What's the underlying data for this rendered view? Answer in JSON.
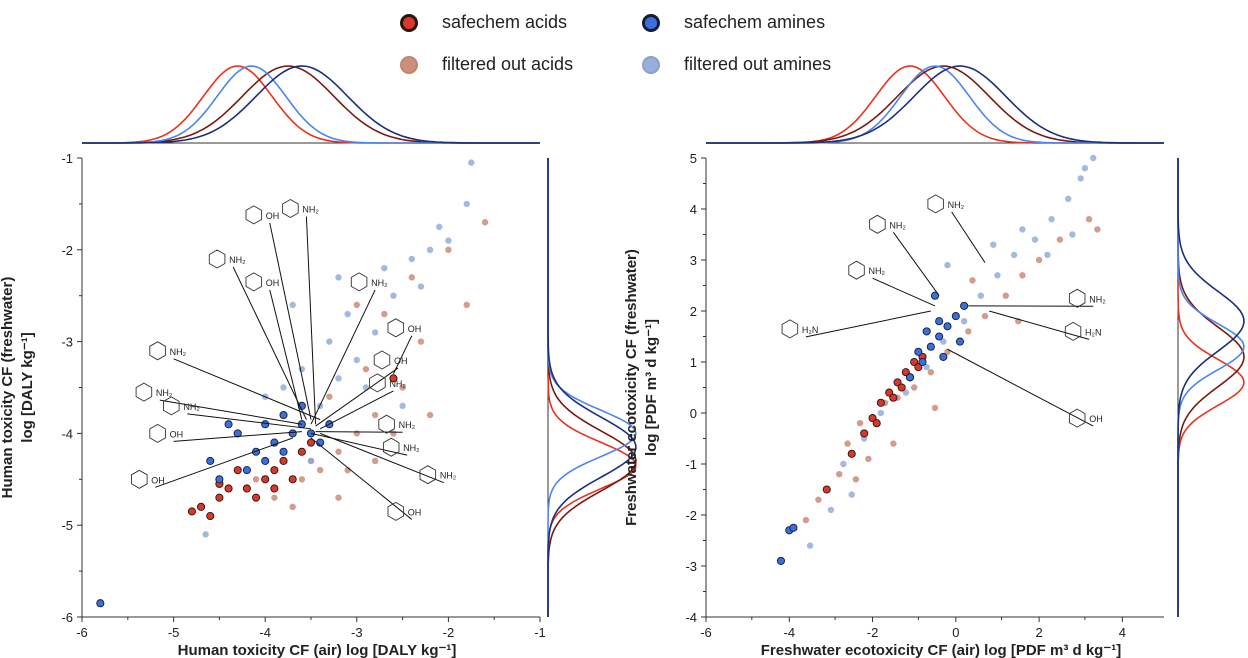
{
  "legend": {
    "items": [
      {
        "label": "safechem acids",
        "color": "#d8382a",
        "edge": "#2a1410",
        "style": "safe"
      },
      {
        "label": "filtered out acids",
        "color": "#c8836e",
        "edge": "#b0705e",
        "style": "filtered"
      },
      {
        "label": "safechem amines",
        "color": "#3b6fdb",
        "edge": "#141c3a",
        "style": "safe"
      },
      {
        "label": "filtered out amines",
        "color": "#8da7d8",
        "edge": "#7f97c6",
        "style": "filtered"
      }
    ]
  },
  "chart_data": [
    {
      "type": "scatter",
      "xlabel": "Human toxicity CF (air) log [DALY kg⁻¹]",
      "ylabel_line1": "Human toxicity CF (freshwater)",
      "ylabel_line2": "log [DALY kg⁻¹]",
      "xlim": [
        -6,
        -1
      ],
      "ylim": [
        -6,
        -1
      ],
      "xticks": [
        "-6",
        "-5",
        "-4",
        "-3",
        "-2",
        "-1"
      ],
      "yticks": [
        "-6",
        "-5",
        "-4",
        "-3",
        "-2",
        "-1"
      ],
      "marginal_x_peaks": {
        "safechem acids": -4.3,
        "filtered out acids": -3.75,
        "safechem amines": -4.15,
        "filtered out amines": -3.6
      },
      "marginal_y_peaks": {
        "safechem acids": -4.35,
        "filtered out acids": -4.3,
        "safechem amines": -4.0,
        "filtered out amines": -4.15
      },
      "series": [
        {
          "name": "safechem acids",
          "points": [
            [
              -4.7,
              -4.8
            ],
            [
              -4.6,
              -4.9
            ],
            [
              -4.5,
              -4.7
            ],
            [
              -4.2,
              -4.6
            ],
            [
              -4.0,
              -4.5
            ],
            [
              -3.9,
              -4.4
            ],
            [
              -4.3,
              -4.4
            ],
            [
              -3.8,
              -4.3
            ],
            [
              -3.6,
              -4.2
            ],
            [
              -3.5,
              -4.1
            ],
            [
              -4.4,
              -4.6
            ],
            [
              -4.1,
              -4.7
            ],
            [
              -3.7,
              -4.5
            ],
            [
              -2.6,
              -3.4
            ],
            [
              -4.8,
              -4.85
            ],
            [
              -3.9,
              -4.6
            ],
            [
              -4.5,
              -4.55
            ]
          ]
        },
        {
          "name": "safechem amines",
          "points": [
            [
              -5.8,
              -5.85
            ],
            [
              -4.6,
              -4.3
            ],
            [
              -4.3,
              -4.0
            ],
            [
              -4.0,
              -3.9
            ],
            [
              -3.8,
              -3.8
            ],
            [
              -3.6,
              -3.9
            ],
            [
              -3.5,
              -4.0
            ],
            [
              -3.4,
              -4.1
            ],
            [
              -3.9,
              -4.1
            ],
            [
              -4.1,
              -4.2
            ],
            [
              -3.7,
              -4.0
            ],
            [
              -4.2,
              -4.4
            ],
            [
              -3.3,
              -3.9
            ],
            [
              -4.5,
              -4.5
            ],
            [
              -3.6,
              -3.7
            ],
            [
              -4.0,
              -4.3
            ],
            [
              -3.8,
              -4.2
            ],
            [
              -4.4,
              -3.9
            ]
          ]
        },
        {
          "name": "filtered out acids",
          "points": [
            [
              -3.2,
              -4.2
            ],
            [
              -3.0,
              -4.0
            ],
            [
              -2.8,
              -3.8
            ],
            [
              -2.5,
              -3.5
            ],
            [
              -3.4,
              -4.4
            ],
            [
              -3.6,
              -4.5
            ],
            [
              -3.1,
              -4.4
            ],
            [
              -2.6,
              -4.0
            ],
            [
              -2.9,
              -3.3
            ],
            [
              -2.7,
              -2.7
            ],
            [
              -2.4,
              -2.3
            ],
            [
              -2.0,
              -2.0
            ],
            [
              -1.6,
              -1.7
            ],
            [
              -3.3,
              -3.6
            ],
            [
              -3.7,
              -4.8
            ],
            [
              -3.2,
              -4.7
            ],
            [
              -2.3,
              -3.0
            ],
            [
              -1.8,
              -2.6
            ],
            [
              -2.2,
              -3.8
            ],
            [
              -3.5,
              -4.3
            ],
            [
              -3.0,
              -2.6
            ],
            [
              -2.8,
              -4.3
            ],
            [
              -4.1,
              -4.5
            ],
            [
              -3.9,
              -4.7
            ]
          ]
        },
        {
          "name": "filtered out amines",
          "points": [
            [
              -3.4,
              -3.7
            ],
            [
              -3.2,
              -3.4
            ],
            [
              -3.0,
              -3.2
            ],
            [
              -2.8,
              -2.9
            ],
            [
              -2.6,
              -2.5
            ],
            [
              -2.4,
              -2.1
            ],
            [
              -2.2,
              -2.0
            ],
            [
              -2.0,
              -1.9
            ],
            [
              -1.8,
              -1.5
            ],
            [
              -1.75,
              -1.05
            ],
            [
              -3.3,
              -3.0
            ],
            [
              -3.1,
              -2.7
            ],
            [
              -2.9,
              -3.5
            ],
            [
              -2.5,
              -3.7
            ],
            [
              -3.6,
              -3.3
            ],
            [
              -4.0,
              -3.6
            ],
            [
              -3.8,
              -3.5
            ],
            [
              -3.5,
              -4.3
            ],
            [
              -4.65,
              -5.1
            ],
            [
              -2.1,
              -1.75
            ],
            [
              -2.7,
              -2.2
            ],
            [
              -3.7,
              -2.6
            ],
            [
              -2.3,
              -2.4
            ],
            [
              -3.2,
              -2.3
            ]
          ]
        }
      ],
      "annotations": [
        {
          "label": "NH₂",
          "x": -3.55,
          "y": -1.55,
          "tx": -3.45,
          "ty": -3.9
        },
        {
          "label": "OH",
          "x": -3.95,
          "y": -1.62,
          "tx": -3.5,
          "ty": -3.85
        },
        {
          "label": "NH₂",
          "x": -4.35,
          "y": -2.1,
          "tx": -3.55,
          "ty": -3.85
        },
        {
          "label": "OH",
          "x": -3.95,
          "y": -2.35,
          "tx": -3.6,
          "ty": -3.85
        },
        {
          "label": "NH₂",
          "x": -5.0,
          "y": -3.1,
          "tx": -3.4,
          "ty": -3.85
        },
        {
          "label": "NH₂",
          "x": -5.15,
          "y": -3.55,
          "tx": -3.6,
          "ty": -3.9
        },
        {
          "label": "NH₂",
          "x": -4.85,
          "y": -3.7,
          "tx": -3.5,
          "ty": -3.95
        },
        {
          "label": "OH",
          "x": -5.0,
          "y": -4.0,
          "tx": -3.6,
          "ty": -3.98
        },
        {
          "label": "OH",
          "x": -5.2,
          "y": -4.5,
          "tx": -3.7,
          "ty": -4.05
        },
        {
          "label": "NH₂",
          "x": -2.8,
          "y": -2.35,
          "tx": -3.5,
          "ty": -3.9
        },
        {
          "label": "OH",
          "x": -2.4,
          "y": -2.85,
          "tx": -2.6,
          "ty": -3.35
        },
        {
          "label": "OH",
          "x": -2.55,
          "y": -3.2,
          "tx": -3.45,
          "ty": -3.92
        },
        {
          "label": "NH₂",
          "x": -2.6,
          "y": -3.45,
          "tx": -3.4,
          "ty": -3.95
        },
        {
          "label": "NH₂",
          "x": -2.5,
          "y": -3.9,
          "tx": -3.45,
          "ty": -3.98
        },
        {
          "label": "NH₂",
          "x": -2.45,
          "y": -4.15,
          "tx": -3.5,
          "ty": -4.0
        },
        {
          "label": "NH₂",
          "x": -2.05,
          "y": -4.45,
          "tx": -3.4,
          "ty": -4.0
        },
        {
          "label": "OH",
          "x": -2.4,
          "y": -4.85,
          "tx": -3.5,
          "ty": -4.05
        }
      ]
    },
    {
      "type": "scatter",
      "xlabel": "Freshwater ecotoxicity CF (air) log [PDF m³ d kg⁻¹]",
      "ylabel_line1": "Freshwater ecotoxicity CF (freshwater)",
      "ylabel_line2": "log [PDF m³ d kg⁻¹]",
      "xlim": [
        -6,
        5
      ],
      "ylim": [
        -4,
        5
      ],
      "xticks": [
        "-6",
        "-4",
        "-2",
        "0",
        "2",
        "4"
      ],
      "yticks": [
        "-4",
        "-3",
        "-2",
        "-1",
        "0",
        "1",
        "2",
        "3",
        "4",
        "5"
      ],
      "marginal_x_peaks": {
        "safechem acids": -1.1,
        "filtered out acids": -0.3,
        "safechem amines": -0.5,
        "filtered out amines": 0.1
      },
      "marginal_y_peaks": {
        "safechem acids": 0.6,
        "filtered out acids": 1.1,
        "safechem amines": 1.3,
        "filtered out amines": 1.8
      },
      "series": [
        {
          "name": "safechem acids",
          "points": [
            [
              -3.1,
              -1.5
            ],
            [
              -2.5,
              -0.8
            ],
            [
              -2.2,
              -0.4
            ],
            [
              -2.0,
              -0.1
            ],
            [
              -1.8,
              0.2
            ],
            [
              -1.6,
              0.4
            ],
            [
              -1.4,
              0.6
            ],
            [
              -1.2,
              0.8
            ],
            [
              -1.0,
              1.0
            ],
            [
              -0.8,
              1.1
            ],
            [
              -1.5,
              0.3
            ],
            [
              -1.9,
              -0.2
            ],
            [
              -1.3,
              0.5
            ],
            [
              -0.9,
              0.9
            ],
            [
              -1.1,
              0.7
            ]
          ]
        },
        {
          "name": "safechem amines",
          "points": [
            [
              -4.2,
              -2.9
            ],
            [
              -4.0,
              -2.3
            ],
            [
              -3.9,
              -2.25
            ],
            [
              -1.1,
              0.7
            ],
            [
              -0.8,
              1.0
            ],
            [
              -0.6,
              1.3
            ],
            [
              -0.4,
              1.5
            ],
            [
              -0.2,
              1.7
            ],
            [
              0.0,
              1.9
            ],
            [
              0.2,
              2.1
            ],
            [
              -0.5,
              2.3
            ],
            [
              -0.7,
              1.6
            ],
            [
              -0.3,
              1.1
            ],
            [
              0.1,
              1.4
            ],
            [
              -0.9,
              1.2
            ],
            [
              -0.4,
              1.8
            ]
          ]
        },
        {
          "name": "filtered out acids",
          "points": [
            [
              -3.6,
              -2.1
            ],
            [
              -3.3,
              -1.7
            ],
            [
              -2.8,
              -1.2
            ],
            [
              -2.6,
              -0.6
            ],
            [
              -2.3,
              -0.2
            ],
            [
              -1.7,
              0.2
            ],
            [
              -1.4,
              0.3
            ],
            [
              -1.0,
              0.5
            ],
            [
              -0.6,
              0.8
            ],
            [
              -0.2,
              1.2
            ],
            [
              0.3,
              1.6
            ],
            [
              0.7,
              1.9
            ],
            [
              1.2,
              2.3
            ],
            [
              1.6,
              2.7
            ],
            [
              2.0,
              3.0
            ],
            [
              2.5,
              3.4
            ],
            [
              3.2,
              3.8
            ],
            [
              -2.1,
              -0.9
            ],
            [
              -1.5,
              -0.6
            ],
            [
              -0.5,
              0.1
            ],
            [
              1.5,
              1.8
            ],
            [
              3.4,
              3.6
            ],
            [
              -2.4,
              -1.3
            ],
            [
              0.4,
              2.6
            ]
          ]
        },
        {
          "name": "filtered out amines",
          "points": [
            [
              -3.5,
              -2.6
            ],
            [
              -3.0,
              -1.9
            ],
            [
              -2.7,
              -1.0
            ],
            [
              -2.2,
              -0.5
            ],
            [
              -1.8,
              0.0
            ],
            [
              -1.2,
              0.4
            ],
            [
              -0.7,
              0.9
            ],
            [
              -0.3,
              1.4
            ],
            [
              0.2,
              1.8
            ],
            [
              0.6,
              2.3
            ],
            [
              1.0,
              2.7
            ],
            [
              1.4,
              3.1
            ],
            [
              1.9,
              3.4
            ],
            [
              2.3,
              3.8
            ],
            [
              2.7,
              4.2
            ],
            [
              3.0,
              4.6
            ],
            [
              3.3,
              5.0
            ],
            [
              3.1,
              4.8
            ],
            [
              2.8,
              3.5
            ],
            [
              0.9,
              3.3
            ],
            [
              1.6,
              3.6
            ],
            [
              -0.2,
              2.9
            ],
            [
              2.2,
              3.1
            ],
            [
              -2.5,
              -1.6
            ]
          ]
        }
      ],
      "annotations": [
        {
          "label": "NH₂",
          "x": -0.1,
          "y": 4.1,
          "tx": 0.7,
          "ty": 2.95
        },
        {
          "label": "NH₂",
          "x": -1.5,
          "y": 3.7,
          "tx": -0.4,
          "ty": 2.3
        },
        {
          "label": "NH₂",
          "x": -2.0,
          "y": 2.8,
          "tx": -0.5,
          "ty": 2.1
        },
        {
          "label": "NH₂",
          "x": 3.3,
          "y": 2.25,
          "tx": 0.3,
          "ty": 2.1
        },
        {
          "label": "H₂N",
          "x": -3.6,
          "y": 1.65,
          "tx": -0.6,
          "ty": 2.0
        },
        {
          "label": "H₂N",
          "x": 3.2,
          "y": 1.6,
          "tx": 0.8,
          "ty": 2.0
        },
        {
          "label": "OH",
          "x": 3.3,
          "y": -0.1,
          "tx": -0.2,
          "ty": 1.25
        }
      ]
    }
  ]
}
